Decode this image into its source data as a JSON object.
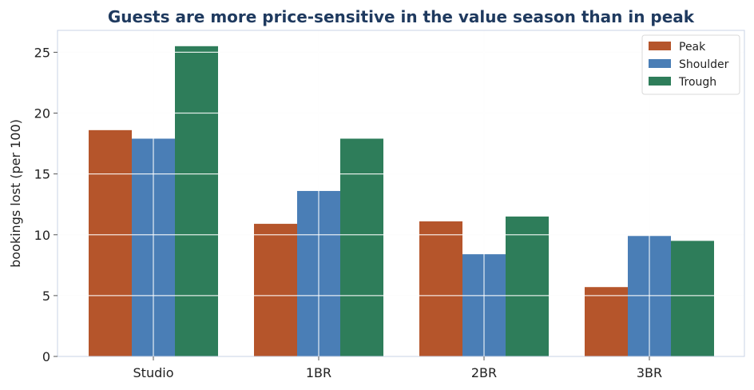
{
  "chart_data": {
    "type": "bar",
    "title": "Guests are more price-sensitive in the value season than in peak",
    "xlabel": "",
    "ylabel": "bookings lost (per 100)",
    "categories": [
      "Studio",
      "1BR",
      "2BR",
      "3BR"
    ],
    "series": [
      {
        "name": "Peak",
        "color": "#b5552b",
        "values": [
          18.6,
          10.9,
          11.1,
          5.7
        ]
      },
      {
        "name": "Shoulder",
        "color": "#4a7eb6",
        "values": [
          17.9,
          13.6,
          8.4,
          9.9
        ]
      },
      {
        "name": "Trough",
        "color": "#2e7d5a",
        "values": [
          25.5,
          17.9,
          11.5,
          9.5
        ]
      }
    ],
    "ylim": [
      0,
      26.8
    ],
    "yticks": [
      0,
      5,
      10,
      15,
      20,
      25
    ],
    "grid": true,
    "legend_position": "top-right"
  }
}
